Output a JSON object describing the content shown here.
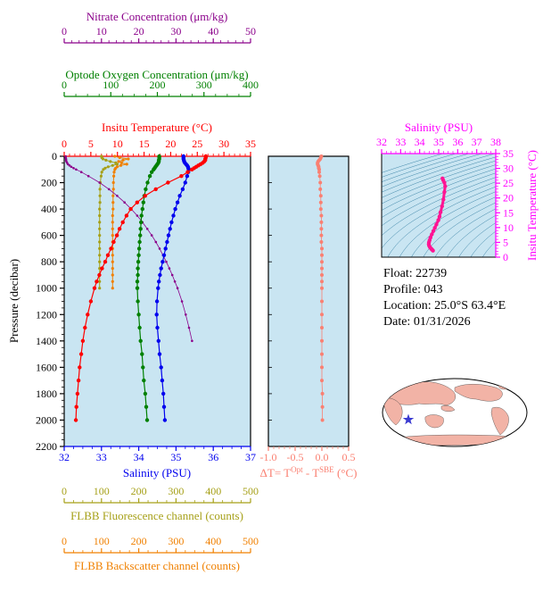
{
  "colors": {
    "nitrate": "#8b008b",
    "oxygen": "#008000",
    "temperature": "#ff0000",
    "salinity": "#0000ee",
    "fluorescence": "#a6a018",
    "backscatter": "#f08000",
    "delta_t": "#fa8072",
    "ts_curve": "#ff1493",
    "ts_axis": "#ff00ff",
    "plot_bg": "#c9e5f2",
    "contours": "#3d85a8",
    "land": "#f2b3a6",
    "star": "#3b3bd1",
    "text": "#000000"
  },
  "info": {
    "float": "Float:  22739",
    "profile": "Profile:  043",
    "location": "Location:  25.0°S  63.4°E",
    "date": "Date:  01/31/2026"
  },
  "chart_data": [
    {
      "id": "main-profiles",
      "type": "line",
      "description": "Vertical profiles of temperature, salinity, oxygen, nitrate, fluorescence and backscatter versus pressure",
      "axes": {
        "pressure": {
          "label": "Pressure (decibar)",
          "range": [
            0,
            2200
          ],
          "ticks": [
            0,
            200,
            400,
            600,
            800,
            1000,
            1200,
            1400,
            1600,
            1800,
            2000,
            2200
          ]
        },
        "temperature": {
          "title": "Insitu Temperature (°C)",
          "range": [
            0,
            35
          ],
          "ticks": [
            0,
            5,
            10,
            15,
            20,
            25,
            30,
            35
          ]
        },
        "salinity": {
          "title": "Salinity (PSU)",
          "range": [
            32,
            37
          ],
          "ticks": [
            32,
            33,
            34,
            35,
            36,
            37
          ]
        },
        "oxygen": {
          "title": "Optode Oxygen Concentration (μm/kg)",
          "range": [
            0,
            400
          ],
          "ticks": [
            0,
            100,
            200,
            300,
            400
          ]
        },
        "nitrate": {
          "title": "Nitrate Concentration (μm/kg)",
          "range": [
            0,
            50
          ],
          "ticks": [
            0,
            10,
            20,
            30,
            40,
            50
          ]
        },
        "fluorescence": {
          "title": "FLBB Fluorescence channel (counts)",
          "range": [
            0,
            500
          ],
          "ticks": [
            0,
            100,
            200,
            300,
            400,
            500
          ]
        },
        "backscatter": {
          "title": "FLBB Backscatter channel (counts)",
          "range": [
            0,
            500
          ],
          "ticks": [
            0,
            100,
            200,
            300,
            400,
            500
          ]
        }
      },
      "series": {
        "temperature": {
          "pressure": [
            0,
            10,
            20,
            30,
            40,
            50,
            60,
            70,
            80,
            90,
            100,
            120,
            150,
            200,
            250,
            300,
            350,
            400,
            450,
            500,
            550,
            600,
            650,
            700,
            750,
            800,
            850,
            900,
            950,
            1000,
            1100,
            1200,
            1300,
            1400,
            1500,
            1600,
            1700,
            1800,
            1900,
            2000
          ],
          "values": [
            26.6,
            26.6,
            26.5,
            26.5,
            26.3,
            26.0,
            25.6,
            25.2,
            24.8,
            24.4,
            24.0,
            23.2,
            22.0,
            19.5,
            17.2,
            15.2,
            13.7,
            12.5,
            11.7,
            11.0,
            10.4,
            9.9,
            9.3,
            8.8,
            8.2,
            7.7,
            7.1,
            6.6,
            6.1,
            5.7,
            5.0,
            4.4,
            3.9,
            3.5,
            3.2,
            2.9,
            2.7,
            2.5,
            2.3,
            2.2
          ]
        },
        "salinity": {
          "pressure": [
            0,
            10,
            20,
            30,
            40,
            50,
            60,
            70,
            80,
            90,
            100,
            120,
            150,
            200,
            250,
            300,
            350,
            400,
            450,
            500,
            550,
            600,
            650,
            700,
            750,
            800,
            850,
            900,
            950,
            1000,
            1100,
            1200,
            1300,
            1400,
            1500,
            1600,
            1700,
            1800,
            1900,
            2000
          ],
          "values": [
            35.2,
            35.2,
            35.2,
            35.21,
            35.22,
            35.24,
            35.27,
            35.3,
            35.32,
            35.33,
            35.34,
            35.33,
            35.3,
            35.25,
            35.18,
            35.1,
            35.04,
            34.98,
            34.93,
            34.88,
            34.84,
            34.8,
            34.76,
            34.72,
            34.68,
            34.64,
            34.6,
            34.57,
            34.54,
            34.52,
            34.49,
            34.48,
            34.5,
            34.53,
            34.56,
            34.6,
            34.63,
            34.66,
            34.68,
            34.7
          ]
        },
        "oxygen": {
          "pressure": [
            0,
            10,
            20,
            30,
            40,
            50,
            60,
            70,
            80,
            90,
            100,
            120,
            150,
            200,
            250,
            300,
            350,
            400,
            450,
            500,
            550,
            600,
            650,
            700,
            750,
            800,
            850,
            900,
            950,
            1000,
            1100,
            1200,
            1300,
            1400,
            1500,
            1600,
            1700,
            1800,
            1900,
            2000
          ],
          "values": [
            204,
            204,
            204,
            203,
            203,
            202,
            200,
            198,
            196,
            194,
            192,
            188,
            184,
            179,
            175,
            172,
            170,
            168,
            166,
            165,
            164,
            163,
            162,
            161,
            160,
            159,
            158,
            158,
            157,
            157,
            158,
            160,
            162,
            164,
            167,
            169,
            171,
            174,
            176,
            178
          ]
        },
        "nitrate": {
          "pressure": [
            0,
            10,
            20,
            30,
            40,
            50,
            60,
            70,
            80,
            90,
            100,
            120,
            150,
            200,
            250,
            300,
            350,
            400,
            450,
            500,
            550,
            600,
            650,
            700,
            750,
            800,
            850,
            900,
            950,
            1000,
            1100,
            1200,
            1300,
            1400
          ],
          "values": [
            0.4,
            0.4,
            0.5,
            0.5,
            0.6,
            0.8,
            1.0,
            1.4,
            1.9,
            2.5,
            3.2,
            4.6,
            6.5,
            9.5,
            12.0,
            14.2,
            16.2,
            18.0,
            19.6,
            21.0,
            22.3,
            23.5,
            24.6,
            25.6,
            26.5,
            27.4,
            28.2,
            29.0,
            29.7,
            30.4,
            31.6,
            32.6,
            33.5,
            34.3
          ]
        },
        "fluorescence": {
          "pressure": [
            0,
            10,
            20,
            30,
            40,
            50,
            60,
            70,
            80,
            90,
            100,
            120,
            150,
            200,
            250,
            300,
            350,
            400,
            450,
            500,
            550,
            600,
            650,
            700,
            750,
            800,
            850,
            900,
            950,
            1000
          ],
          "values": [
            100,
            101,
            104,
            112,
            124,
            138,
            142,
            130,
            118,
            110,
            105,
            101,
            99,
            97,
            96,
            96,
            96,
            95,
            95,
            95,
            95,
            95,
            95,
            95,
            95,
            95,
            95,
            95,
            95,
            95
          ]
        },
        "backscatter": {
          "pressure": [
            0,
            10,
            20,
            30,
            40,
            50,
            60,
            70,
            80,
            90,
            100,
            120,
            150,
            200,
            250,
            300,
            350,
            400,
            450,
            500,
            550,
            600,
            650,
            700,
            750,
            800,
            850,
            900,
            950,
            1000
          ],
          "values": [
            136,
            149,
            172,
            158,
            146,
            154,
            168,
            152,
            142,
            138,
            136,
            134,
            133,
            132,
            132,
            131,
            131,
            131,
            130,
            130,
            130,
            130,
            130,
            130,
            130,
            130,
            130,
            130,
            130,
            130
          ]
        }
      }
    },
    {
      "id": "delta-t",
      "type": "scatter",
      "title_parts": [
        "ΔT= T",
        "Opt",
        " - T",
        "SBE",
        " (°C)"
      ],
      "range": [
        -1.0,
        0.5
      ],
      "ticks": [
        -1.0,
        -0.5,
        0.0,
        0.5
      ],
      "tick_labels": [
        "-1.0",
        "-0.5",
        "0.0",
        "0.5"
      ],
      "pressure": [
        0,
        10,
        20,
        30,
        40,
        50,
        60,
        70,
        80,
        90,
        100,
        120,
        150,
        200,
        250,
        300,
        350,
        400,
        450,
        500,
        550,
        600,
        650,
        700,
        750,
        800,
        850,
        900,
        950,
        1000,
        1100,
        1200,
        1300,
        1400,
        1500,
        1600,
        1700,
        1800,
        1900,
        2000
      ],
      "values": [
        -0.01,
        -0.02,
        -0.03,
        -0.05,
        -0.07,
        -0.08,
        -0.08,
        -0.07,
        -0.06,
        -0.06,
        -0.05,
        -0.05,
        -0.04,
        -0.03,
        -0.03,
        -0.02,
        -0.02,
        -0.02,
        -0.01,
        -0.01,
        -0.01,
        -0.01,
        -0.01,
        0.0,
        0.0,
        0.0,
        0.0,
        0.0,
        0.0,
        0.0,
        0.0,
        0.0,
        0.0,
        0.0,
        0.0,
        0.0,
        0.0,
        0.01,
        0.01,
        0.01
      ]
    },
    {
      "id": "ts-diagram",
      "type": "line",
      "sal_title": "Salinity (PSU)",
      "temp_title": "Insitu Temperature (°C)",
      "sal_range": [
        32,
        38
      ],
      "sal_ticks": [
        32,
        33,
        34,
        35,
        36,
        37,
        38
      ],
      "temp_range": [
        0,
        35
      ],
      "temp_ticks": [
        0,
        5,
        10,
        15,
        20,
        25,
        30,
        35
      ],
      "sigma_levels": [
        20,
        20.5,
        21,
        21.5,
        22,
        22.5,
        23,
        23.5,
        24,
        24.5,
        25,
        25.5,
        26,
        26.5,
        27,
        27.5,
        28,
        28.5,
        29,
        29.5,
        30
      ],
      "s": [
        35.2,
        35.24,
        35.3,
        35.34,
        35.3,
        35.25,
        35.18,
        35.1,
        35.04,
        34.98,
        34.88,
        34.8,
        34.72,
        34.64,
        34.57,
        34.52,
        34.49,
        34.48,
        34.5,
        34.53,
        34.56,
        34.6,
        34.63,
        34.66,
        34.7
      ],
      "t": [
        26.6,
        26.0,
        25.2,
        24.0,
        22.0,
        19.5,
        17.2,
        15.2,
        13.7,
        12.5,
        11.0,
        9.9,
        8.8,
        7.7,
        6.6,
        5.7,
        5.0,
        4.4,
        3.9,
        3.5,
        3.2,
        2.9,
        2.7,
        2.5,
        2.2
      ]
    }
  ]
}
